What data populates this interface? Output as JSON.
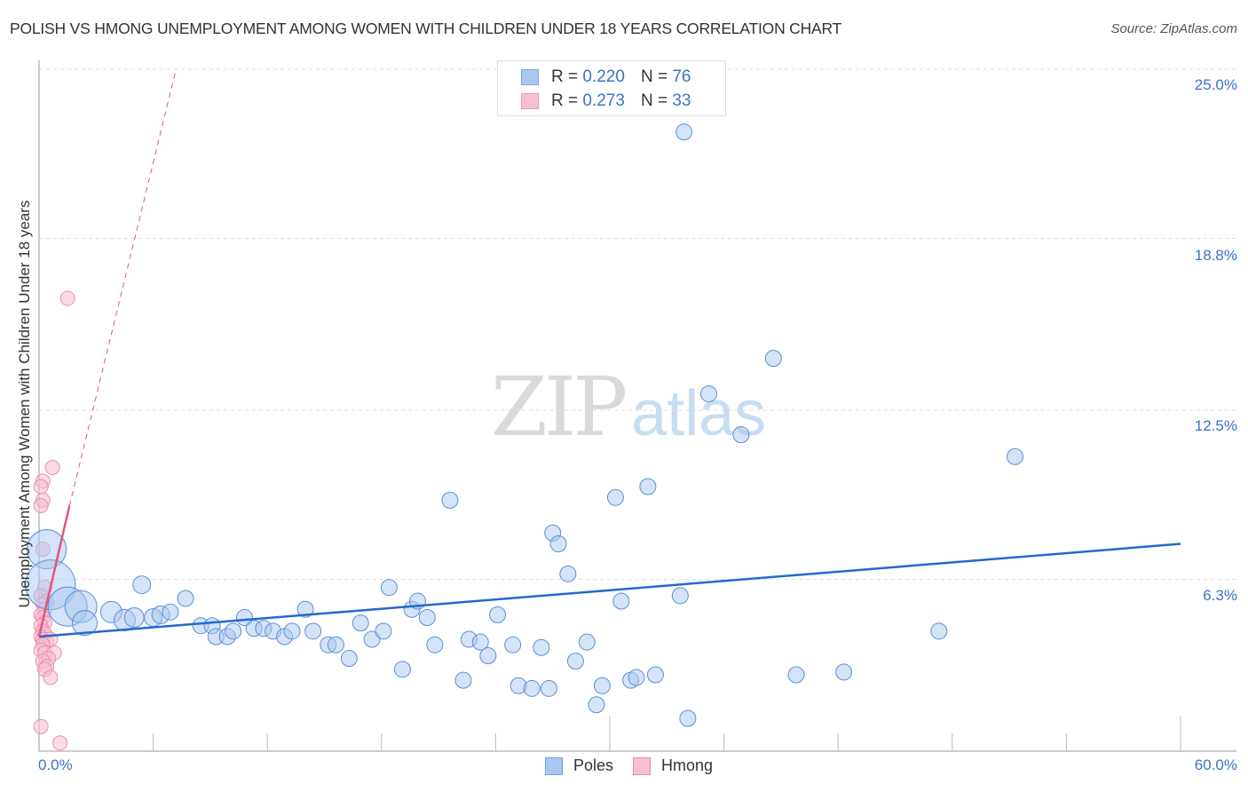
{
  "title": "POLISH VS HMONG UNEMPLOYMENT AMONG WOMEN WITH CHILDREN UNDER 18 YEARS CORRELATION CHART",
  "source": "Source: ZipAtlas.com",
  "watermark": {
    "zip": "ZIP",
    "atlas": "atlas"
  },
  "legend": {
    "rows": [
      {
        "r_label": "R =",
        "r_value": "0.220",
        "n_label": "N =",
        "n_value": "76",
        "color": "#a9c8f0"
      },
      {
        "r_label": "R =",
        "r_value": "0.273",
        "n_label": "N =",
        "n_value": "33",
        "color": "#f7bdd0"
      }
    ]
  },
  "bottom_legend": [
    {
      "label": "Poles",
      "color": "#a9c8f0",
      "border": "#6f9fdc"
    },
    {
      "label": "Hmong",
      "color": "#f7c0d2",
      "border": "#e88aa8"
    }
  ],
  "axes": {
    "y_label": "Unemployment Among Women with Children Under 18 years",
    "y_ticks": [
      "25.0%",
      "18.8%",
      "12.5%",
      "6.3%"
    ],
    "x_ticks": [
      "0.0%",
      "60.0%"
    ]
  },
  "colors": {
    "poles_fill": "#a9c8f0",
    "poles_stroke": "#5b8fd6",
    "poles_line": "#2469cc",
    "hmong_fill": "#f7bdd0",
    "hmong_stroke": "#e890ad",
    "hmong_line": "#e0577f",
    "grid": "#dddddd",
    "axis": "#bbbbbb",
    "tick_label": "#3a73c6"
  },
  "chart_data": {
    "type": "scatter",
    "title": "POLISH VS HMONG UNEMPLOYMENT AMONG WOMEN WITH CHILDREN UNDER 18 YEARS CORRELATION CHART",
    "xlabel": "",
    "ylabel": "Unemployment Among Women with Children Under 18 years",
    "xlim": [
      0,
      60
    ],
    "ylim": [
      0,
      25
    ],
    "x_tick_labels": [
      "0.0%",
      "60.0%"
    ],
    "y_tick_values": [
      6.3,
      12.5,
      18.8,
      25.0
    ],
    "grid": true,
    "legend_position": "top-center",
    "series": [
      {
        "name": "Poles",
        "R": 0.22,
        "N": 76,
        "trendline": {
          "x": [
            0,
            60
          ],
          "y": [
            4.2,
            7.6
          ]
        },
        "points": [
          [
            0.4,
            7.4,
            22
          ],
          [
            0.6,
            6.1,
            28
          ],
          [
            1.5,
            5.3,
            22
          ],
          [
            2.2,
            5.3,
            18
          ],
          [
            2.4,
            4.7,
            14
          ],
          [
            3.8,
            5.1,
            12
          ],
          [
            4.5,
            4.8,
            12
          ],
          [
            5.0,
            4.9,
            11
          ],
          [
            5.4,
            6.1,
            10
          ],
          [
            6.0,
            4.9,
            10
          ],
          [
            6.4,
            5.0,
            10
          ],
          [
            6.9,
            5.1,
            9
          ],
          [
            7.7,
            5.6,
            9
          ],
          [
            8.5,
            4.6,
            9
          ],
          [
            9.1,
            4.6,
            9
          ],
          [
            9.3,
            4.2,
            9
          ],
          [
            9.9,
            4.2,
            9
          ],
          [
            10.2,
            4.4,
            9
          ],
          [
            10.8,
            4.9,
            9
          ],
          [
            11.3,
            4.5,
            9
          ],
          [
            11.8,
            4.5,
            9
          ],
          [
            12.3,
            4.4,
            9
          ],
          [
            12.9,
            4.2,
            9
          ],
          [
            13.3,
            4.4,
            9
          ],
          [
            14.0,
            5.2,
            9
          ],
          [
            14.4,
            4.4,
            9
          ],
          [
            15.2,
            3.9,
            9
          ],
          [
            15.6,
            3.9,
            9
          ],
          [
            16.3,
            3.4,
            9
          ],
          [
            16.9,
            4.7,
            9
          ],
          [
            17.5,
            4.1,
            9
          ],
          [
            18.1,
            4.4,
            9
          ],
          [
            18.4,
            6.0,
            9
          ],
          [
            19.1,
            3.0,
            9
          ],
          [
            19.6,
            5.2,
            9
          ],
          [
            19.9,
            5.5,
            9
          ],
          [
            20.4,
            4.9,
            9
          ],
          [
            20.8,
            3.9,
            9
          ],
          [
            21.6,
            9.2,
            9
          ],
          [
            22.3,
            2.6,
            9
          ],
          [
            22.6,
            4.1,
            9
          ],
          [
            23.2,
            4.0,
            9
          ],
          [
            23.6,
            3.5,
            9
          ],
          [
            24.1,
            5.0,
            9
          ],
          [
            24.9,
            3.9,
            9
          ],
          [
            25.2,
            2.4,
            9
          ],
          [
            25.9,
            2.3,
            9
          ],
          [
            26.4,
            3.8,
            9
          ],
          [
            26.8,
            2.3,
            9
          ],
          [
            27.0,
            8.0,
            9
          ],
          [
            27.3,
            7.6,
            9
          ],
          [
            27.8,
            6.5,
            9
          ],
          [
            28.2,
            3.3,
            9
          ],
          [
            28.8,
            4.0,
            9
          ],
          [
            29.3,
            1.7,
            9
          ],
          [
            29.6,
            2.4,
            9
          ],
          [
            30.3,
            9.3,
            9
          ],
          [
            30.6,
            5.5,
            9
          ],
          [
            31.1,
            2.6,
            9
          ],
          [
            31.4,
            2.7,
            9
          ],
          [
            32.0,
            9.7,
            9
          ],
          [
            32.4,
            2.8,
            9
          ],
          [
            33.7,
            5.7,
            9
          ],
          [
            33.9,
            22.7,
            9
          ],
          [
            34.1,
            1.2,
            9
          ],
          [
            35.2,
            13.1,
            9
          ],
          [
            36.9,
            11.6,
            9
          ],
          [
            38.6,
            14.4,
            9
          ],
          [
            39.8,
            2.8,
            9
          ],
          [
            42.3,
            2.9,
            9
          ],
          [
            47.3,
            4.4,
            9
          ],
          [
            51.3,
            10.8,
            9
          ]
        ]
      },
      {
        "name": "Hmong",
        "R": 0.273,
        "N": 33,
        "trendline_solid": {
          "x": [
            0,
            1.6
          ],
          "y": [
            4.2,
            9.0
          ]
        },
        "trendline_dashed": {
          "x": [
            1.6,
            7.2
          ],
          "y": [
            9.0,
            25.0
          ]
        },
        "points": [
          [
            1.5,
            16.6
          ],
          [
            0.7,
            10.4
          ],
          [
            0.2,
            9.9
          ],
          [
            0.1,
            9.7
          ],
          [
            0.2,
            9.2
          ],
          [
            0.1,
            9.0
          ],
          [
            0.2,
            7.4
          ],
          [
            0.3,
            6.0
          ],
          [
            0.1,
            5.7
          ],
          [
            0.4,
            5.5
          ],
          [
            0.2,
            5.4
          ],
          [
            0.3,
            5.2
          ],
          [
            0.1,
            5.0
          ],
          [
            0.2,
            4.9
          ],
          [
            0.3,
            4.7
          ],
          [
            0.1,
            4.6
          ],
          [
            0.2,
            4.4
          ],
          [
            0.3,
            4.3
          ],
          [
            0.1,
            4.2
          ],
          [
            0.2,
            4.1
          ],
          [
            0.4,
            4.0
          ],
          [
            0.6,
            4.1
          ],
          [
            0.2,
            3.9
          ],
          [
            0.1,
            3.7
          ],
          [
            0.3,
            3.6
          ],
          [
            0.8,
            3.6
          ],
          [
            0.5,
            3.4
          ],
          [
            0.2,
            3.3
          ],
          [
            0.4,
            3.1
          ],
          [
            0.3,
            3.0
          ],
          [
            0.6,
            2.7
          ],
          [
            0.1,
            0.9
          ],
          [
            1.1,
            0.3
          ]
        ]
      }
    ]
  }
}
